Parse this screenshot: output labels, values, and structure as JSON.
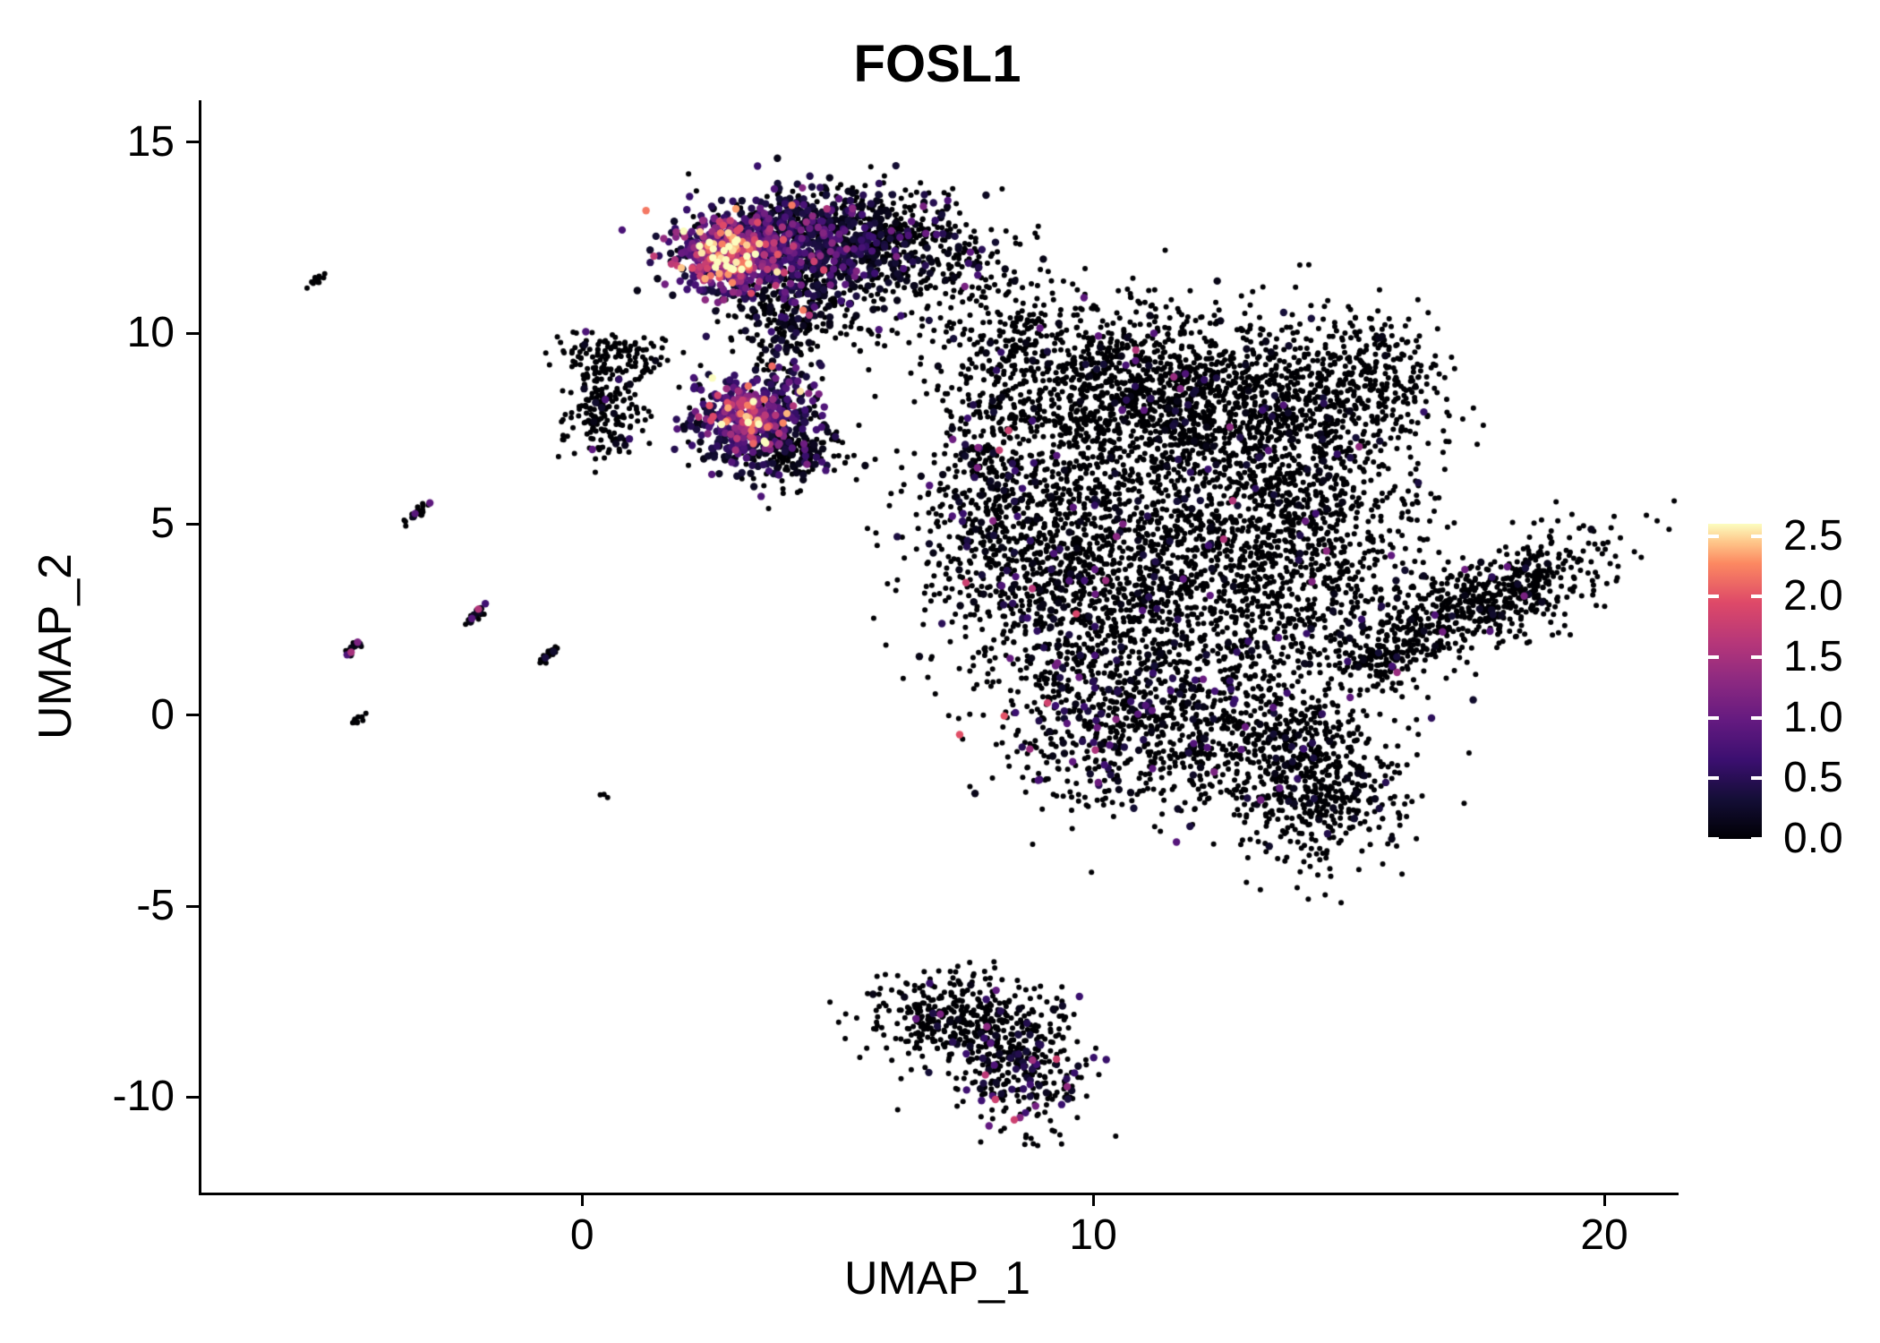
{
  "chart_data": {
    "type": "scatter",
    "title": "FOSL1",
    "xlabel": "UMAP_1",
    "ylabel": "UMAP_2",
    "xlim": [
      -7.5,
      21.4
    ],
    "ylim": [
      -12.5,
      16.1
    ],
    "grid": false,
    "legend_position": "right",
    "seed": 20,
    "point_radius_zero": 3.0,
    "point_radius_expr": 4.2,
    "clusters": [
      {
        "name": "top-core-bright",
        "cx": 2.9,
        "cy": 12.1,
        "sx": 0.6,
        "sy": 0.5,
        "n": 480,
        "expr": {
          "frac": 0.92,
          "mean": 1.0,
          "max": 2.6
        },
        "hotspots": [
          {
            "x": 2.8,
            "y": 12.1,
            "r": 0.6,
            "boost": 1.5
          }
        ]
      },
      {
        "name": "top-mid",
        "cx": 4.3,
        "cy": 12.4,
        "sx": 1.0,
        "sy": 0.68,
        "n": 820,
        "expr": {
          "frac": 0.55,
          "mean": 0.55,
          "max": 2.2
        },
        "hotspots": [
          {
            "x": 3.6,
            "y": 12.2,
            "r": 0.8,
            "boost": 0.5
          }
        ]
      },
      {
        "name": "top-right-dark",
        "cx": 5.9,
        "cy": 12.5,
        "sx": 0.85,
        "sy": 0.6,
        "n": 330,
        "expr": {
          "frac": 0.25,
          "mean": 0.45,
          "max": 1.6
        }
      },
      {
        "name": "top-lower-fringe",
        "cx": 4.2,
        "cy": 10.7,
        "sx": 0.95,
        "sy": 0.55,
        "n": 230,
        "expr": {
          "frac": 0.3,
          "mean": 0.5,
          "max": 1.8
        }
      },
      {
        "name": "top-neck",
        "cx": 3.9,
        "cy": 9.6,
        "sx": 0.45,
        "sy": 0.75,
        "n": 100,
        "expr": {
          "frac": 0.35,
          "mean": 0.5,
          "max": 1.6
        }
      },
      {
        "name": "left-upper",
        "cx": 0.5,
        "cy": 9.4,
        "sx": 0.55,
        "sy": 0.32,
        "n": 140,
        "expr": {
          "frac": 0.05,
          "mean": 0.4,
          "max": 1.2
        }
      },
      {
        "name": "left-lower",
        "cx": 0.35,
        "cy": 7.9,
        "sx": 0.42,
        "sy": 0.55,
        "n": 170,
        "expr": {
          "frac": 0.05,
          "mean": 0.4,
          "max": 1.2
        }
      },
      {
        "name": "mid-bright",
        "cx": 3.2,
        "cy": 7.7,
        "sx": 0.6,
        "sy": 0.62,
        "n": 480,
        "expr": {
          "frac": 0.85,
          "mean": 0.8,
          "max": 2.6
        },
        "hotspots": [
          {
            "x": 3.2,
            "y": 8.0,
            "r": 0.45,
            "boost": 1.3
          }
        ]
      },
      {
        "name": "mid-dark-fringe",
        "cx": 4.0,
        "cy": 6.9,
        "sx": 0.55,
        "sy": 0.42,
        "n": 170,
        "expr": {
          "frac": 0.3,
          "mean": 0.5,
          "max": 1.6
        }
      },
      {
        "name": "bridge-sparse",
        "cx": 6.8,
        "cy": 11.8,
        "sx": 0.85,
        "sy": 0.9,
        "n": 130,
        "expr": {
          "frac": 0.12,
          "mean": 0.5,
          "max": 1.4
        }
      },
      {
        "name": "main-upper-left",
        "cx": 8.3,
        "cy": 10.0,
        "sx": 0.65,
        "sy": 0.85,
        "n": 160,
        "expr": {
          "frac": 0.06,
          "mean": 0.5,
          "max": 1.4
        }
      },
      {
        "name": "main-upper-1",
        "cx": 10.4,
        "cy": 8.6,
        "sx": 1.5,
        "sy": 1.15,
        "n": 950,
        "expr": {
          "frac": 0.05,
          "mean": 0.5,
          "max": 1.8
        }
      },
      {
        "name": "main-upper-2",
        "cx": 13.0,
        "cy": 8.0,
        "sx": 1.4,
        "sy": 1.2,
        "n": 800,
        "expr": {
          "frac": 0.05,
          "mean": 0.5,
          "max": 1.8
        }
      },
      {
        "name": "main-knob-ne",
        "cx": 15.3,
        "cy": 8.8,
        "sx": 0.7,
        "sy": 0.9,
        "n": 280,
        "expr": {
          "frac": 0.03,
          "mean": 0.5,
          "max": 1.4
        }
      },
      {
        "name": "main-left",
        "cx": 9.2,
        "cy": 4.3,
        "sx": 1.25,
        "sy": 1.9,
        "n": 950,
        "expr": {
          "frac": 0.08,
          "mean": 0.55,
          "max": 1.8
        }
      },
      {
        "name": "main-center",
        "cx": 11.9,
        "cy": 3.6,
        "sx": 1.7,
        "sy": 1.9,
        "n": 1300,
        "expr": {
          "frac": 0.05,
          "mean": 0.5,
          "max": 1.8
        }
      },
      {
        "name": "main-right",
        "cx": 14.2,
        "cy": 4.9,
        "sx": 1.1,
        "sy": 1.6,
        "n": 620,
        "expr": {
          "frac": 0.05,
          "mean": 0.5,
          "max": 1.8
        }
      },
      {
        "name": "main-west-edge",
        "cx": 7.8,
        "cy": 5.8,
        "sx": 0.5,
        "sy": 1.4,
        "n": 240,
        "expr": {
          "frac": 0.14,
          "mean": 0.6,
          "max": 1.8
        }
      },
      {
        "name": "main-lower-1",
        "cx": 10.3,
        "cy": 0.0,
        "sx": 1.1,
        "sy": 1.15,
        "n": 480,
        "expr": {
          "frac": 0.18,
          "mean": 0.7,
          "max": 2.0
        }
      },
      {
        "name": "main-lower-2",
        "cx": 12.8,
        "cy": -0.6,
        "sx": 1.4,
        "sy": 1.05,
        "n": 560,
        "expr": {
          "frac": 0.08,
          "mean": 0.55,
          "max": 1.8
        }
      },
      {
        "name": "main-tail",
        "cx": 14.4,
        "cy": -2.1,
        "sx": 0.85,
        "sy": 1.0,
        "n": 380,
        "expr": {
          "frac": 0.05,
          "mean": 0.5,
          "max": 1.6
        }
      },
      {
        "name": "right-arm",
        "cx": 17.5,
        "cy": 2.9,
        "sx": 1.45,
        "sy": 0.55,
        "rot": 32,
        "n": 680,
        "expr": {
          "frac": 0.04,
          "mean": 0.5,
          "max": 1.6
        }
      },
      {
        "name": "right-arm-tail",
        "cx": 15.6,
        "cy": 1.6,
        "sx": 0.45,
        "sy": 0.35,
        "n": 90,
        "expr": {
          "frac": 0.05,
          "mean": 0.5,
          "max": 1.4
        }
      },
      {
        "name": "bottom-left",
        "cx": 7.3,
        "cy": -7.9,
        "sx": 0.9,
        "sy": 0.55,
        "n": 360,
        "expr": {
          "frac": 0.05,
          "mean": 0.5,
          "max": 1.4
        }
      },
      {
        "name": "bottom-right",
        "cx": 8.5,
        "cy": -9.2,
        "sx": 0.7,
        "sy": 0.8,
        "n": 320,
        "expr": {
          "frac": 0.2,
          "mean": 0.7,
          "max": 1.8
        },
        "hotspots": [
          {
            "x": 8.5,
            "y": -9.7,
            "r": 0.6,
            "boost": 0.35
          }
        ]
      },
      {
        "name": "streak-1",
        "type": "streak",
        "x1": -5.35,
        "y1": 11.25,
        "x2": -5.12,
        "y2": 11.58,
        "n": 14,
        "expr": {
          "frac": 0.0,
          "mean": 0.3,
          "max": 0.8
        }
      },
      {
        "name": "streak-2",
        "type": "streak",
        "x1": -3.55,
        "y1": 5.0,
        "x2": -3.12,
        "y2": 5.5,
        "n": 26,
        "expr": {
          "frac": 0.06,
          "mean": 0.5,
          "max": 1.2
        }
      },
      {
        "name": "streak-3",
        "type": "streak",
        "x1": -4.65,
        "y1": 1.6,
        "x2": -4.42,
        "y2": 1.95,
        "n": 20,
        "expr": {
          "frac": 0.3,
          "mean": 0.7,
          "max": 1.5
        }
      },
      {
        "name": "streak-4",
        "type": "streak",
        "x1": -2.28,
        "y1": 2.4,
        "x2": -2.0,
        "y2": 2.78,
        "n": 22,
        "expr": {
          "frac": 0.45,
          "mean": 0.8,
          "max": 1.6
        }
      },
      {
        "name": "streak-5",
        "type": "streak",
        "x1": -0.85,
        "y1": 1.4,
        "x2": -0.55,
        "y2": 1.78,
        "n": 22,
        "expr": {
          "frac": 0.12,
          "mean": 0.5,
          "max": 1.2
        }
      },
      {
        "name": "streak-6",
        "type": "streak",
        "x1": -4.52,
        "y1": -0.25,
        "x2": -4.38,
        "y2": -0.05,
        "n": 10,
        "expr": {
          "frac": 0.0,
          "mean": 0.3,
          "max": 0.8
        }
      },
      {
        "name": "dot-isolated",
        "type": "streak",
        "x1": 0.38,
        "y1": -2.12,
        "x2": 0.45,
        "y2": -2.05,
        "n": 3,
        "expr": {
          "frac": 0.0,
          "mean": 0.3,
          "max": 0.8
        }
      }
    ]
  },
  "axes": {
    "x_ticks": [
      0,
      10,
      20
    ],
    "y_ticks": [
      -10,
      -5,
      0,
      5,
      10,
      15
    ]
  },
  "legend": {
    "vmin": 0,
    "vmax": 2.6,
    "ticks": [
      {
        "label": "2.5",
        "value": 2.5
      },
      {
        "label": "2.0",
        "value": 2.0
      },
      {
        "label": "1.5",
        "value": 1.5
      },
      {
        "label": "1.0",
        "value": 1.0
      },
      {
        "label": "0.5",
        "value": 0.5
      },
      {
        "label": "0.0",
        "value": 0.0
      }
    ]
  },
  "colormap": {
    "name": "magma",
    "stops": [
      [
        0.0,
        "#000004"
      ],
      [
        0.125,
        "#140e36"
      ],
      [
        0.25,
        "#3b0f70"
      ],
      [
        0.375,
        "#641a80"
      ],
      [
        0.5,
        "#8c2981"
      ],
      [
        0.625,
        "#b73779"
      ],
      [
        0.75,
        "#de4968"
      ],
      [
        0.875,
        "#fc8961"
      ],
      [
        0.94,
        "#fec488"
      ],
      [
        1.0,
        "#fcfdbf"
      ]
    ]
  },
  "colors": {
    "axis": "#000000",
    "text": "#000000",
    "background": "#ffffff",
    "legend_tick": "#ffffff"
  }
}
